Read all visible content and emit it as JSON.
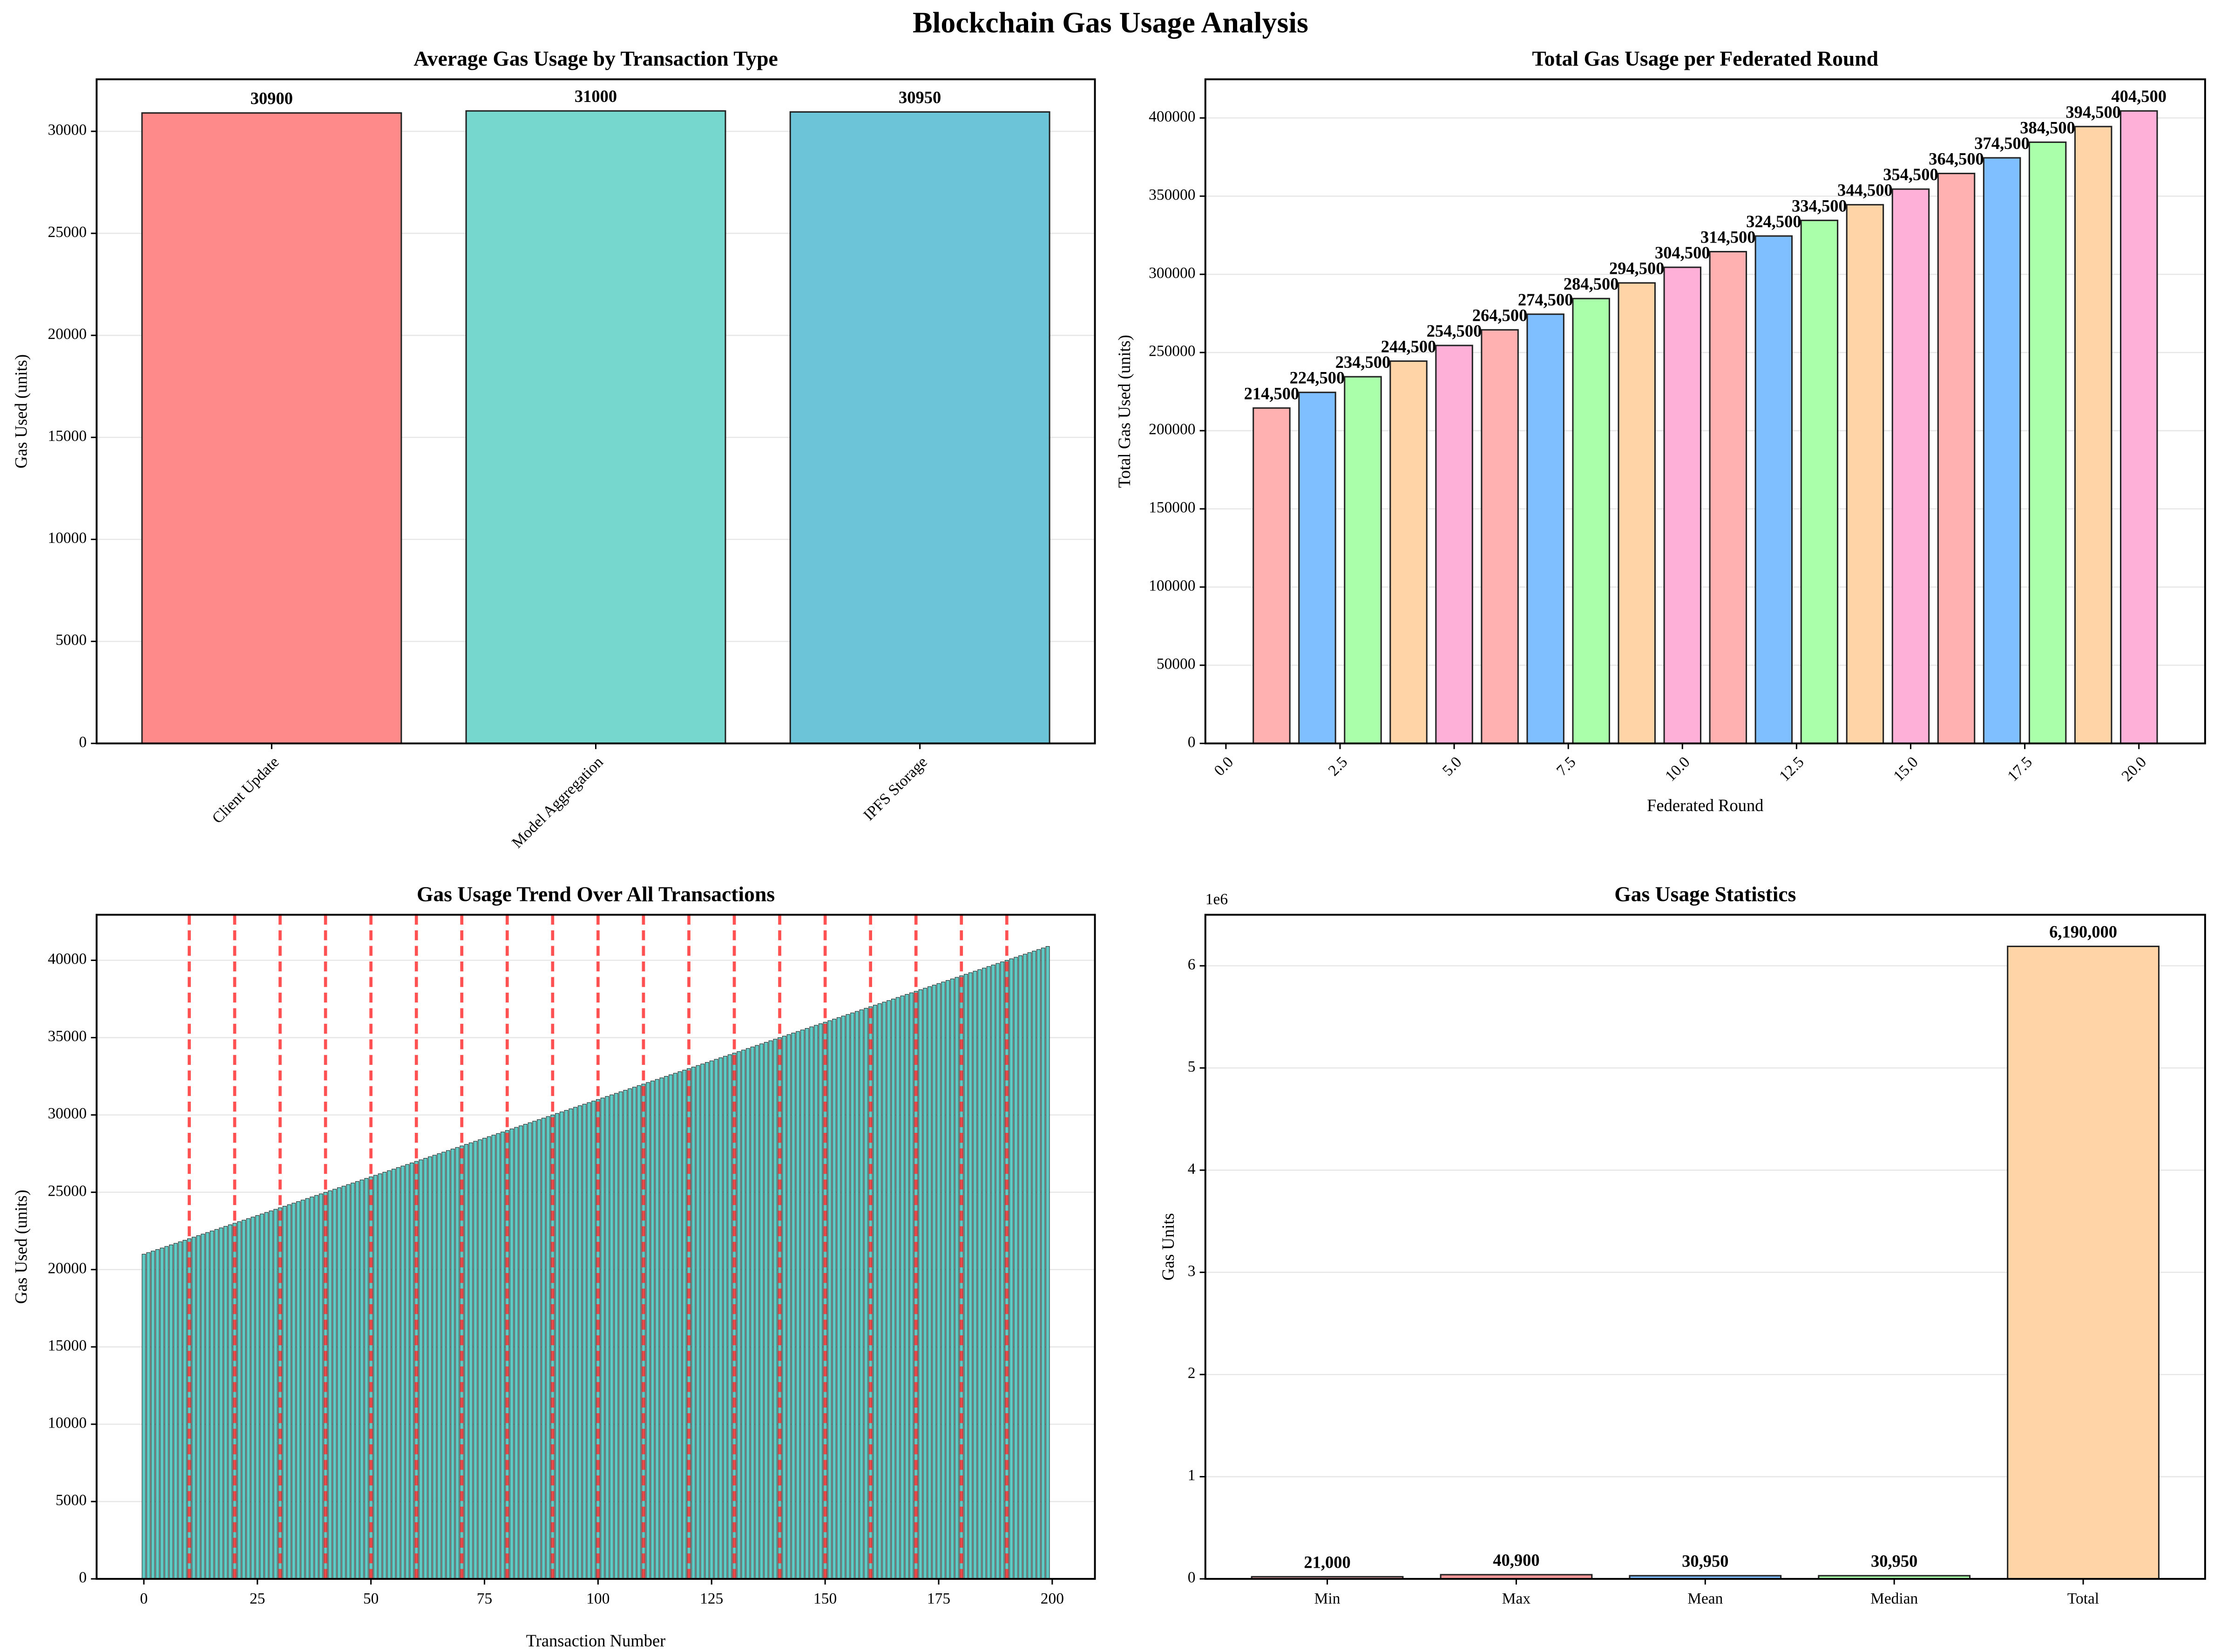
{
  "title": "Blockchain Gas Usage Analysis",
  "chart_data": [
    {
      "type": "bar",
      "title": "Average Gas Usage by Transaction Type",
      "ylabel": "Gas Used (units)",
      "categories": [
        "Client Update",
        "Model Aggregation",
        "IPFS Storage"
      ],
      "values": [
        30900,
        31000,
        30950
      ],
      "colors": [
        "#ff8a8a",
        "#76d7ce",
        "#6cc4d9"
      ],
      "ylim": [
        0,
        32550
      ],
      "yticks": [
        0,
        5000,
        10000,
        15000,
        20000,
        25000,
        30000
      ],
      "grid": true
    },
    {
      "type": "bar",
      "title": "Total Gas Usage per Federated Round",
      "xlabel": "Federated Round",
      "ylabel": "Total Gas Used (units)",
      "x": [
        1,
        2,
        3,
        4,
        5,
        6,
        7,
        8,
        9,
        10,
        11,
        12,
        13,
        14,
        15,
        16,
        17,
        18,
        19,
        20
      ],
      "values": [
        214500,
        224500,
        234500,
        244500,
        254500,
        264500,
        274500,
        284500,
        294500,
        304500,
        314500,
        324500,
        334500,
        344500,
        354500,
        364500,
        374500,
        384500,
        394500,
        404500
      ],
      "value_labels": [
        "214,500",
        "224,500",
        "234,500",
        "244,500",
        "254,500",
        "264,500",
        "274,500",
        "284,500",
        "294,500",
        "304,500",
        "314,500",
        "324,500",
        "334,500",
        "344,500",
        "354,500",
        "364,500",
        "374,500",
        "384,500",
        "394,500",
        "404,500"
      ],
      "colors": [
        "#ffb0b0",
        "#80bfff",
        "#aaffaa",
        "#ffd5a8",
        "#ffb0d9",
        "#ffb0b0",
        "#80bfff",
        "#aaffaa",
        "#ffd5a8",
        "#ffb0d9",
        "#ffb0b0",
        "#80bfff",
        "#aaffaa",
        "#ffd5a8",
        "#ffb0d9",
        "#ffb0b0",
        "#80bfff",
        "#aaffaa",
        "#ffd5a8",
        "#ffb0d9"
      ],
      "xlim": [
        -0.45,
        21.45
      ],
      "xticks": [
        {
          "value": 0,
          "label": "0.0"
        },
        {
          "value": 2.5,
          "label": "2.5"
        },
        {
          "value": 5,
          "label": "5.0"
        },
        {
          "value": 7.5,
          "label": "7.5"
        },
        {
          "value": 10,
          "label": "10.0"
        },
        {
          "value": 12.5,
          "label": "12.5"
        },
        {
          "value": 15,
          "label": "15.0"
        },
        {
          "value": 17.5,
          "label": "17.5"
        },
        {
          "value": 20,
          "label": "20.0"
        }
      ],
      "ylim": [
        0,
        424725
      ],
      "yticks": [
        0,
        50000,
        100000,
        150000,
        200000,
        250000,
        300000,
        350000,
        400000
      ],
      "grid": true
    },
    {
      "type": "bar",
      "title": "Gas Usage Trend Over All Transactions",
      "xlabel": "Transaction Number",
      "ylabel": "Gas Used (units)",
      "x": [
        0,
        1,
        2,
        3,
        4,
        5,
        6,
        7,
        8,
        9,
        10,
        11,
        12,
        13,
        14,
        15,
        16,
        17,
        18,
        19,
        20,
        21,
        22,
        23,
        24,
        25,
        26,
        27,
        28,
        29,
        30,
        31,
        32,
        33,
        34,
        35,
        36,
        37,
        38,
        39,
        40,
        41,
        42,
        43,
        44,
        45,
        46,
        47,
        48,
        49,
        50,
        51,
        52,
        53,
        54,
        55,
        56,
        57,
        58,
        59,
        60,
        61,
        62,
        63,
        64,
        65,
        66,
        67,
        68,
        69,
        70,
        71,
        72,
        73,
        74,
        75,
        76,
        77,
        78,
        79,
        80,
        81,
        82,
        83,
        84,
        85,
        86,
        87,
        88,
        89,
        90,
        91,
        92,
        93,
        94,
        95,
        96,
        97,
        98,
        99,
        100,
        101,
        102,
        103,
        104,
        105,
        106,
        107,
        108,
        109,
        110,
        111,
        112,
        113,
        114,
        115,
        116,
        117,
        118,
        119,
        120,
        121,
        122,
        123,
        124,
        125,
        126,
        127,
        128,
        129,
        130,
        131,
        132,
        133,
        134,
        135,
        136,
        137,
        138,
        139,
        140,
        141,
        142,
        143,
        144,
        145,
        146,
        147,
        148,
        149,
        150,
        151,
        152,
        153,
        154,
        155,
        156,
        157,
        158,
        159,
        160,
        161,
        162,
        163,
        164,
        165,
        166,
        167,
        168,
        169,
        170,
        171,
        172,
        173,
        174,
        175,
        176,
        177,
        178,
        179,
        180,
        181,
        182,
        183,
        184,
        185,
        186,
        187,
        188,
        189,
        190,
        191,
        192,
        193,
        194,
        195,
        196,
        197,
        198,
        199
      ],
      "values": [
        21000,
        21100,
        21200,
        21300,
        21400,
        21500,
        21600,
        21700,
        21800,
        21900,
        22000,
        22100,
        22200,
        22300,
        22400,
        22500,
        22600,
        22700,
        22800,
        22900,
        23000,
        23100,
        23200,
        23300,
        23400,
        23500,
        23600,
        23700,
        23800,
        23900,
        24000,
        24100,
        24200,
        24300,
        24400,
        24500,
        24600,
        24700,
        24800,
        24900,
        25000,
        25100,
        25200,
        25300,
        25400,
        25500,
        25600,
        25700,
        25800,
        25900,
        26000,
        26100,
        26200,
        26300,
        26400,
        26500,
        26600,
        26700,
        26800,
        26900,
        27000,
        27100,
        27200,
        27300,
        27400,
        27500,
        27600,
        27700,
        27800,
        27900,
        28000,
        28100,
        28200,
        28300,
        28400,
        28500,
        28600,
        28700,
        28800,
        28900,
        29000,
        29100,
        29200,
        29300,
        29400,
        29500,
        29600,
        29700,
        29800,
        29900,
        30000,
        30100,
        30200,
        30300,
        30400,
        30500,
        30600,
        30700,
        30800,
        30900,
        31000,
        31100,
        31200,
        31300,
        31400,
        31500,
        31600,
        31700,
        31800,
        31900,
        32000,
        32100,
        32200,
        32300,
        32400,
        32500,
        32600,
        32700,
        32800,
        32900,
        33000,
        33100,
        33200,
        33300,
        33400,
        33500,
        33600,
        33700,
        33800,
        33900,
        34000,
        34100,
        34200,
        34300,
        34400,
        34500,
        34600,
        34700,
        34800,
        34900,
        35000,
        35100,
        35200,
        35300,
        35400,
        35500,
        35600,
        35700,
        35800,
        35900,
        36000,
        36100,
        36200,
        36300,
        36400,
        36500,
        36600,
        36700,
        36800,
        36900,
        37000,
        37100,
        37200,
        37300,
        37400,
        37500,
        37600,
        37700,
        37800,
        37900,
        38000,
        38100,
        38200,
        38300,
        38400,
        38500,
        38600,
        38700,
        38800,
        38900,
        39000,
        39100,
        39200,
        39300,
        39400,
        39500,
        39600,
        39700,
        39800,
        39900,
        40000,
        40100,
        40200,
        40300,
        40400,
        40500,
        40600,
        40700,
        40800,
        40900
      ],
      "color": "#5fc9c3",
      "round_boundaries": [
        10,
        20,
        30,
        40,
        50,
        60,
        70,
        80,
        90,
        100,
        110,
        120,
        130,
        140,
        150,
        160,
        170,
        180,
        190
      ],
      "boundary_color": "#ff3333",
      "xlim": [
        -10.4,
        209.4
      ],
      "xticks": [
        0,
        25,
        50,
        75,
        100,
        125,
        150,
        175,
        200
      ],
      "ylim": [
        0,
        42945
      ],
      "yticks": [
        0,
        5000,
        10000,
        15000,
        20000,
        25000,
        30000,
        35000,
        40000
      ],
      "grid": true
    },
    {
      "type": "bar",
      "title": "Gas Usage Statistics",
      "ylabel": "Gas Units",
      "offset_text": "1e6",
      "categories": [
        "Min",
        "Max",
        "Mean",
        "Median",
        "Total"
      ],
      "values": [
        21000,
        40900,
        30950,
        30950,
        6190000
      ],
      "value_labels": [
        "21,000",
        "40,900",
        "30,950",
        "30,950",
        "6,190,000"
      ],
      "colors": [
        "#ffb0b0",
        "#ff9999",
        "#80bfff",
        "#aaffaa",
        "#ffd5a8"
      ],
      "ylim": [
        0,
        6499500
      ],
      "yticks": [
        0,
        {
          "value": 1000000,
          "label": "1"
        },
        {
          "value": 2000000,
          "label": "2"
        },
        {
          "value": 3000000,
          "label": "3"
        },
        {
          "value": 4000000,
          "label": "4"
        },
        {
          "value": 5000000,
          "label": "5"
        },
        {
          "value": 6000000,
          "label": "6"
        }
      ],
      "grid": true
    }
  ]
}
